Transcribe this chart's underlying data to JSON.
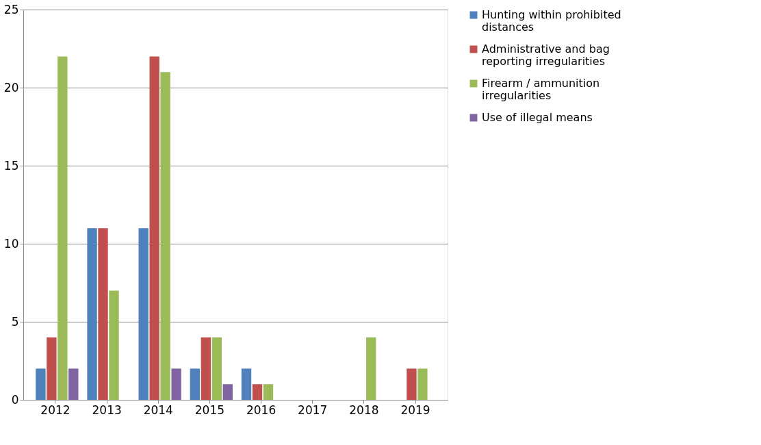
{
  "chart_data": {
    "type": "bar",
    "categories": [
      "2012",
      "2013",
      "2014",
      "2015",
      "2016",
      "2017",
      "2018",
      "2019"
    ],
    "series": [
      {
        "name": "Hunting within prohibited distances",
        "color": "#4f81bd",
        "values": [
          2,
          11,
          11,
          2,
          2,
          0,
          0,
          0
        ]
      },
      {
        "name": "Administrative and bag reporting irregularities",
        "color": "#c0504d",
        "values": [
          4,
          11,
          22,
          4,
          1,
          0,
          0,
          2
        ]
      },
      {
        "name": "Firearm / ammunition irregularities",
        "color": "#9bbb59",
        "values": [
          22,
          7,
          21,
          4,
          1,
          0,
          4,
          2
        ]
      },
      {
        "name": "Use of illegal means",
        "color": "#8064a2",
        "values": [
          2,
          0,
          2,
          1,
          0,
          0,
          0,
          0
        ]
      }
    ],
    "ylim": [
      0,
      25
    ],
    "yticks": [
      0,
      5,
      10,
      15,
      20,
      25
    ],
    "grid": "y",
    "legend": "right"
  }
}
